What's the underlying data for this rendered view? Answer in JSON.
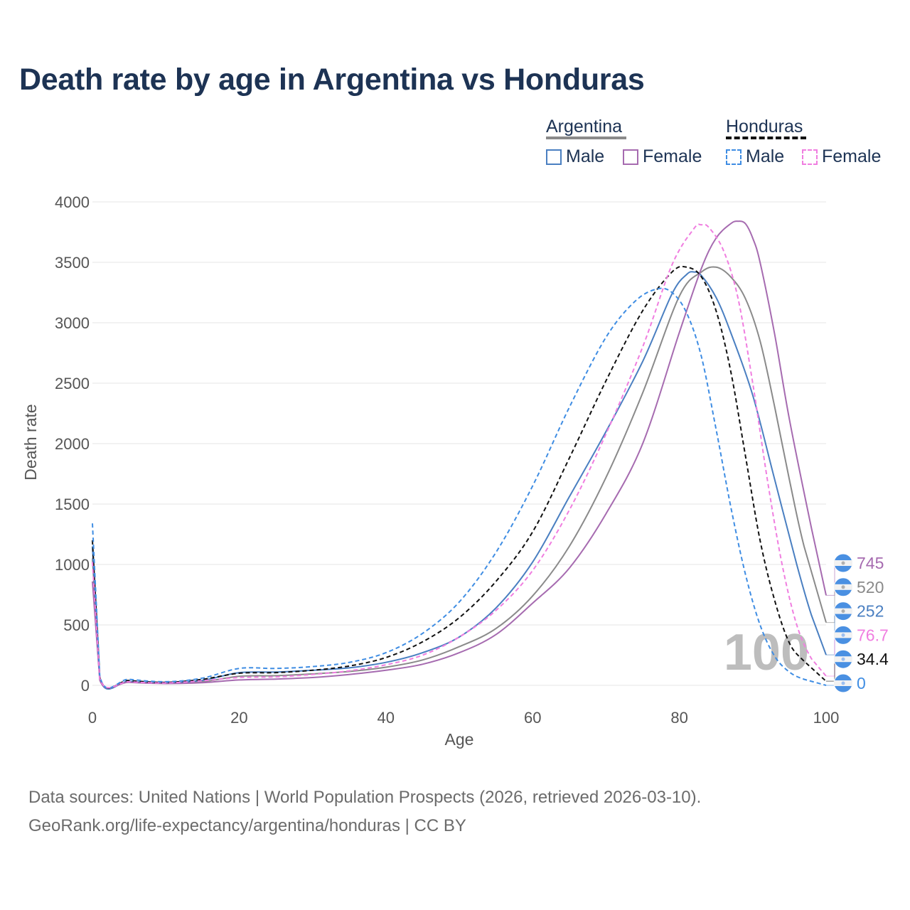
{
  "title": "Death rate by age in Argentina vs Honduras",
  "legend": {
    "groups": [
      {
        "name": "Argentina",
        "items": [
          "Male",
          "Female"
        ]
      },
      {
        "name": "Honduras",
        "items": [
          "Male",
          "Female"
        ]
      }
    ]
  },
  "footer": {
    "line1": "Data sources: United Nations | World Population Prospects (2026, retrieved 2026-03-10).",
    "line2": "GeoRank.org/life-expectancy/argentina/honduras | CC BY"
  },
  "colors": {
    "argentina_male": "#4a7fc1",
    "argentina_female": "#a66bb0",
    "argentina_total": "#8a8a8a",
    "honduras_male": "#3f8de3",
    "honduras_female": "#f07ee0",
    "honduras_total": "#111111",
    "title": "#1d3354"
  },
  "chart_data": {
    "type": "line",
    "xlabel": "Age",
    "ylabel": "Death rate",
    "xlim": [
      0,
      100
    ],
    "ylim": [
      0,
      4000
    ],
    "xticks": [
      0,
      20,
      40,
      60,
      80,
      100
    ],
    "yticks": [
      0,
      500,
      1000,
      1500,
      2000,
      2500,
      3000,
      3500,
      4000
    ],
    "current_age_label": "100",
    "series": [
      {
        "name": "Argentina Total",
        "country": "Argentina",
        "sex": "Total",
        "color": "#8a8a8a",
        "dash": "solid",
        "end_label": "520",
        "points": [
          [
            0,
            1050
          ],
          [
            1,
            55
          ],
          [
            5,
            30
          ],
          [
            10,
            18
          ],
          [
            15,
            30
          ],
          [
            20,
            75
          ],
          [
            25,
            80
          ],
          [
            30,
            95
          ],
          [
            35,
            115
          ],
          [
            40,
            150
          ],
          [
            45,
            210
          ],
          [
            50,
            320
          ],
          [
            55,
            470
          ],
          [
            60,
            740
          ],
          [
            65,
            1150
          ],
          [
            70,
            1720
          ],
          [
            75,
            2420
          ],
          [
            80,
            3220
          ],
          [
            83,
            3420
          ],
          [
            85,
            3460
          ],
          [
            87,
            3380
          ],
          [
            89,
            3200
          ],
          [
            91,
            2850
          ],
          [
            93,
            2300
          ],
          [
            95,
            1700
          ],
          [
            97,
            1150
          ],
          [
            100,
            520
          ]
        ]
      },
      {
        "name": "Argentina Male",
        "country": "Argentina",
        "sex": "Male",
        "color": "#4a7fc1",
        "dash": "solid",
        "end_label": "252",
        "points": [
          [
            0,
            1150
          ],
          [
            1,
            58
          ],
          [
            5,
            33
          ],
          [
            10,
            20
          ],
          [
            15,
            42
          ],
          [
            20,
            105
          ],
          [
            25,
            110
          ],
          [
            30,
            125
          ],
          [
            35,
            145
          ],
          [
            40,
            190
          ],
          [
            45,
            270
          ],
          [
            50,
            400
          ],
          [
            55,
            640
          ],
          [
            60,
            1020
          ],
          [
            65,
            1560
          ],
          [
            70,
            2100
          ],
          [
            75,
            2680
          ],
          [
            79,
            3240
          ],
          [
            81,
            3400
          ],
          [
            82,
            3420
          ],
          [
            83,
            3390
          ],
          [
            85,
            3210
          ],
          [
            87,
            2920
          ],
          [
            90,
            2400
          ],
          [
            93,
            1700
          ],
          [
            96,
            1000
          ],
          [
            98,
            580
          ],
          [
            100,
            252
          ]
        ]
      },
      {
        "name": "Argentina Female",
        "country": "Argentina",
        "sex": "Female",
        "color": "#a66bb0",
        "dash": "solid",
        "end_label": "745",
        "points": [
          [
            0,
            860
          ],
          [
            1,
            45
          ],
          [
            5,
            25
          ],
          [
            10,
            15
          ],
          [
            15,
            22
          ],
          [
            20,
            45
          ],
          [
            25,
            52
          ],
          [
            30,
            65
          ],
          [
            35,
            90
          ],
          [
            40,
            125
          ],
          [
            45,
            175
          ],
          [
            50,
            270
          ],
          [
            55,
            420
          ],
          [
            60,
            680
          ],
          [
            65,
            970
          ],
          [
            70,
            1420
          ],
          [
            75,
            2000
          ],
          [
            80,
            2920
          ],
          [
            83,
            3450
          ],
          [
            85,
            3700
          ],
          [
            87,
            3820
          ],
          [
            88,
            3840
          ],
          [
            89,
            3820
          ],
          [
            90,
            3700
          ],
          [
            91,
            3500
          ],
          [
            93,
            2900
          ],
          [
            95,
            2200
          ],
          [
            98,
            1300
          ],
          [
            100,
            745
          ]
        ]
      },
      {
        "name": "Honduras Total",
        "country": "Honduras",
        "sex": "Total",
        "color": "#111111",
        "dash": "dashed",
        "end_label": "34.4",
        "points": [
          [
            0,
            1200
          ],
          [
            1,
            70
          ],
          [
            5,
            40
          ],
          [
            10,
            25
          ],
          [
            15,
            50
          ],
          [
            20,
            100
          ],
          [
            25,
            105
          ],
          [
            30,
            125
          ],
          [
            35,
            160
          ],
          [
            40,
            230
          ],
          [
            45,
            360
          ],
          [
            50,
            560
          ],
          [
            55,
            860
          ],
          [
            60,
            1270
          ],
          [
            65,
            1880
          ],
          [
            70,
            2520
          ],
          [
            75,
            3100
          ],
          [
            79,
            3420
          ],
          [
            81,
            3460
          ],
          [
            83,
            3380
          ],
          [
            85,
            3100
          ],
          [
            87,
            2600
          ],
          [
            89,
            1900
          ],
          [
            91,
            1200
          ],
          [
            93,
            700
          ],
          [
            95,
            350
          ],
          [
            97,
            200
          ],
          [
            100,
            34.4
          ]
        ]
      },
      {
        "name": "Honduras Male",
        "country": "Honduras",
        "sex": "Male",
        "color": "#3f8de3",
        "dash": "dashed",
        "end_label": "0",
        "points": [
          [
            0,
            1340
          ],
          [
            1,
            80
          ],
          [
            5,
            50
          ],
          [
            10,
            30
          ],
          [
            15,
            60
          ],
          [
            20,
            140
          ],
          [
            25,
            140
          ],
          [
            30,
            155
          ],
          [
            35,
            190
          ],
          [
            40,
            270
          ],
          [
            45,
            430
          ],
          [
            50,
            690
          ],
          [
            55,
            1100
          ],
          [
            60,
            1650
          ],
          [
            65,
            2300
          ],
          [
            70,
            2880
          ],
          [
            74,
            3180
          ],
          [
            77,
            3280
          ],
          [
            79,
            3250
          ],
          [
            81,
            3080
          ],
          [
            83,
            2720
          ],
          [
            85,
            2120
          ],
          [
            87,
            1480
          ],
          [
            89,
            920
          ],
          [
            91,
            500
          ],
          [
            93,
            240
          ],
          [
            95,
            110
          ],
          [
            97,
            50
          ],
          [
            100,
            0
          ]
        ]
      },
      {
        "name": "Honduras Female",
        "country": "Honduras",
        "sex": "Female",
        "color": "#f07ee0",
        "dash": "dashed",
        "end_label": "76.7",
        "points": [
          [
            0,
            1020
          ],
          [
            1,
            60
          ],
          [
            5,
            30
          ],
          [
            10,
            20
          ],
          [
            15,
            38
          ],
          [
            20,
            65
          ],
          [
            25,
            70
          ],
          [
            30,
            90
          ],
          [
            35,
            120
          ],
          [
            40,
            170
          ],
          [
            45,
            250
          ],
          [
            50,
            400
          ],
          [
            55,
            620
          ],
          [
            60,
            950
          ],
          [
            65,
            1450
          ],
          [
            70,
            2080
          ],
          [
            75,
            2800
          ],
          [
            79,
            3480
          ],
          [
            82,
            3780
          ],
          [
            83,
            3810
          ],
          [
            84,
            3790
          ],
          [
            86,
            3600
          ],
          [
            88,
            3200
          ],
          [
            90,
            2500
          ],
          [
            92,
            1700
          ],
          [
            94,
            1000
          ],
          [
            96,
            500
          ],
          [
            98,
            220
          ],
          [
            100,
            76.7
          ]
        ]
      }
    ]
  }
}
